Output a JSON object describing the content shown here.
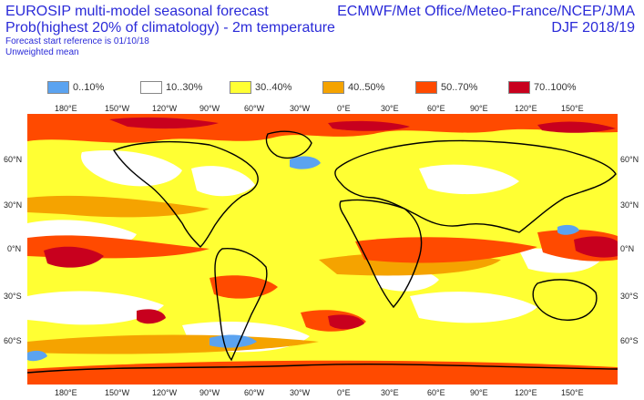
{
  "header": {
    "line1": "EUROSIP multi-model seasonal forecast",
    "line2": "Prob(highest 20% of climatology) - 2m temperature",
    "line3": "Forecast start reference is 01/10/18",
    "line4": "Unweighted mean",
    "right1": "ECMWF/Met Office/Meteo-France/NCEP/JMA",
    "right2": "DJF 2018/19"
  },
  "legend": [
    {
      "label": "0..10%",
      "color": "#5ba3f0"
    },
    {
      "label": "10..30%",
      "color": "#ffffff"
    },
    {
      "label": "30..40%",
      "color": "#ffff33"
    },
    {
      "label": "40..50%",
      "color": "#f5a300"
    },
    {
      "label": "50..70%",
      "color": "#ff4a00"
    },
    {
      "label": "70..100%",
      "color": "#c8001e"
    }
  ],
  "axes": {
    "lon_labels": [
      "180°E",
      "150°W",
      "120°W",
      "90°W",
      "60°W",
      "30°W",
      "0°E",
      "30°E",
      "60°E",
      "90°E",
      "120°E",
      "150°E"
    ],
    "lat_labels": [
      "60°N",
      "30°N",
      "0°N",
      "30°S",
      "60°S"
    ]
  }
}
